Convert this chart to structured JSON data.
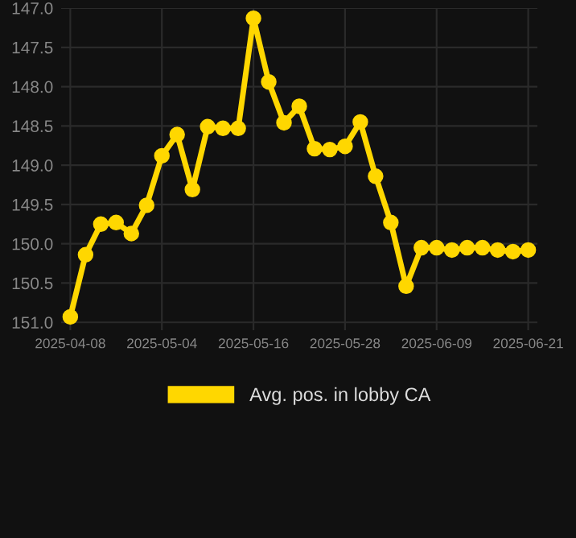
{
  "chart_data": {
    "type": "line",
    "categories": [
      "2025-04-08",
      null,
      null,
      null,
      null,
      null,
      "2025-05-04",
      null,
      null,
      null,
      null,
      null,
      "2025-05-16",
      null,
      null,
      null,
      null,
      null,
      "2025-05-28",
      null,
      null,
      null,
      null,
      null,
      "2025-06-09",
      null,
      null,
      null,
      null,
      null,
      "2025-06-21"
    ],
    "series": [
      {
        "name": "Avg. pos. in lobby CA",
        "color": "#ffd700",
        "values": [
          150.93,
          150.14,
          149.75,
          149.73,
          149.87,
          149.51,
          148.88,
          148.61,
          149.31,
          148.51,
          148.53,
          148.53,
          147.13,
          147.94,
          148.46,
          148.25,
          148.79,
          148.8,
          148.76,
          148.45,
          149.14,
          149.73,
          150.54,
          150.05,
          150.05,
          150.08,
          150.05,
          150.05,
          150.08,
          150.1,
          150.08
        ]
      }
    ],
    "ylim": [
      151.1,
      147.0
    ],
    "yticks": [
      {
        "value": 147.0,
        "label": "147.0"
      },
      {
        "value": 147.5,
        "label": "147.5"
      },
      {
        "value": 148.0,
        "label": "148.0"
      },
      {
        "value": 148.5,
        "label": "148.5"
      },
      {
        "value": 149.0,
        "label": "149.0"
      },
      {
        "value": 149.5,
        "label": "149.5"
      },
      {
        "value": 150.0,
        "label": "150.0"
      },
      {
        "value": 150.5,
        "label": "150.5"
      },
      {
        "value": 151.0,
        "label": "151.0"
      }
    ],
    "grid": true,
    "legend": "bottom",
    "marker": "circle",
    "line_style": "solid"
  }
}
